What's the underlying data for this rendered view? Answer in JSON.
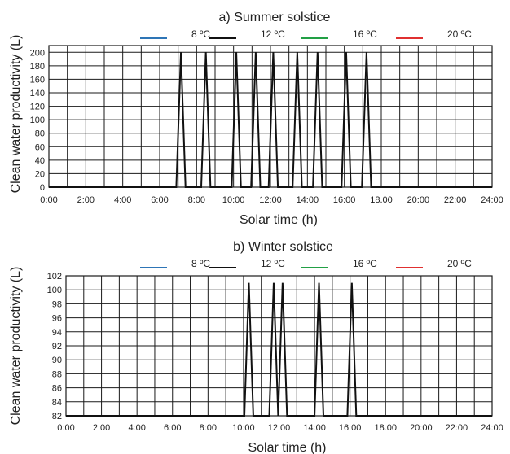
{
  "chart_data": [
    {
      "type": "line",
      "title": "a) Summer solstice",
      "xlabel": "Solar time (h)",
      "ylabel": "Clean water productivity (L)",
      "x_ticks": [
        "0:00",
        "2:00",
        "4:00",
        "6:00",
        "8:00",
        "10:00",
        "12:00",
        "14:00",
        "16:00",
        "18.00",
        "20:00",
        "22:00",
        "24:00"
      ],
      "xlim": [
        0,
        24
      ],
      "ylim": [
        0,
        210
      ],
      "y_ticks": [
        0,
        20,
        40,
        60,
        80,
        100,
        120,
        140,
        160,
        180,
        200
      ],
      "grid": true,
      "legend_position": "top",
      "series": [
        {
          "name": "8 ºC",
          "color": "#2e75b6",
          "x": [],
          "y": []
        },
        {
          "name": "12 ºC",
          "color": "#111111",
          "x": [
            0,
            6.9,
            7.15,
            7.4,
            8.25,
            8.5,
            8.75,
            9.9,
            10.15,
            10.4,
            10.95,
            11.2,
            11.45,
            11.9,
            12.15,
            12.4,
            13.2,
            13.45,
            13.7,
            14.3,
            14.55,
            14.8,
            15.85,
            16.1,
            16.35,
            16.95,
            17.2,
            17.45,
            24
          ],
          "y": [
            0,
            0,
            200,
            0,
            0,
            200,
            0,
            0,
            200,
            0,
            0,
            200,
            0,
            0,
            200,
            0,
            0,
            200,
            0,
            0,
            200,
            0,
            0,
            200,
            0,
            0,
            200,
            0,
            0
          ]
        },
        {
          "name": "16 ºC",
          "color": "#22a045",
          "x": [],
          "y": []
        },
        {
          "name": "20 ºC",
          "color": "#e03030",
          "x": [],
          "y": []
        }
      ]
    },
    {
      "type": "line",
      "title": "b) Winter solstice",
      "xlabel": "Solar time (h)",
      "ylabel": "Clean water productivity (L)",
      "x_ticks": [
        "0:00",
        "2:00",
        "4:00",
        "6:00",
        "8:00",
        "10:00",
        "12:00",
        "14:00",
        "16:00",
        "18.00",
        "20:00",
        "22:00",
        "24:00"
      ],
      "xlim": [
        0,
        24
      ],
      "ylim": [
        82,
        102
      ],
      "y_ticks": [
        82,
        84,
        86,
        88,
        90,
        92,
        94,
        96,
        98,
        100,
        102
      ],
      "grid": true,
      "legend_position": "top",
      "series": [
        {
          "name": "8 ºC",
          "color": "#2e75b6",
          "x": [],
          "y": []
        },
        {
          "name": "12 ºC",
          "color": "#111111",
          "x": [
            0,
            10.05,
            10.3,
            10.55,
            11.45,
            11.7,
            11.95,
            11.95,
            12.2,
            12.45,
            14.0,
            14.25,
            14.5,
            15.85,
            16.1,
            16.35,
            24
          ],
          "y": [
            82,
            82,
            101,
            82,
            82,
            101,
            82,
            82,
            101,
            82,
            82,
            101,
            82,
            82,
            101,
            82,
            82
          ]
        },
        {
          "name": "16 ºC",
          "color": "#22a045",
          "x": [],
          "y": []
        },
        {
          "name": "20 ºC",
          "color": "#e03030",
          "x": [],
          "y": []
        }
      ]
    }
  ]
}
